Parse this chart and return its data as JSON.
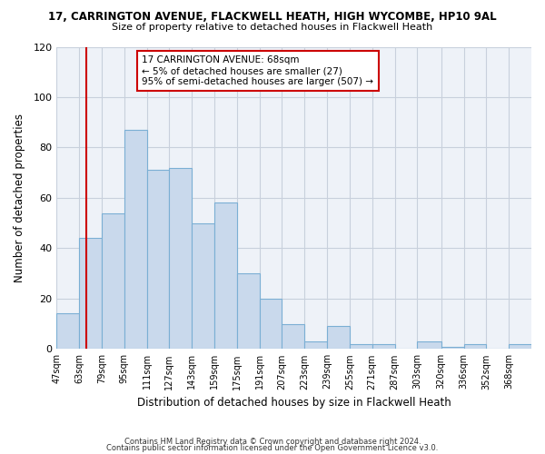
{
  "title": "17, CARRINGTON AVENUE, FLACKWELL HEATH, HIGH WYCOMBE, HP10 9AL",
  "subtitle": "Size of property relative to detached houses in Flackwell Heath",
  "xlabel": "Distribution of detached houses by size in Flackwell Heath",
  "ylabel": "Number of detached properties",
  "footer_lines": [
    "Contains HM Land Registry data © Crown copyright and database right 2024.",
    "Contains public sector information licensed under the Open Government Licence v3.0."
  ],
  "bins": [
    47,
    63,
    79,
    95,
    111,
    127,
    143,
    159,
    175,
    191,
    207,
    223,
    239,
    255,
    271,
    287,
    303,
    320,
    336,
    352,
    368,
    384
  ],
  "counts": [
    14,
    44,
    54,
    87,
    71,
    72,
    50,
    58,
    30,
    20,
    10,
    3,
    9,
    2,
    2,
    0,
    3,
    1,
    2,
    0,
    2
  ],
  "bar_facecolor": "#c9d9ec",
  "bar_edgecolor": "#7bafd4",
  "property_line_x": 68,
  "property_line_color": "#cc0000",
  "annotation_title": "17 CARRINGTON AVENUE: 68sqm",
  "annotation_line1": "← 5% of detached houses are smaller (27)",
  "annotation_line2": "95% of semi-detached houses are larger (507) →",
  "annotation_box_color": "#cc0000",
  "ylim": [
    0,
    120
  ],
  "xlim": [
    47,
    384
  ],
  "tick_labels": [
    "47sqm",
    "63sqm",
    "79sqm",
    "95sqm",
    "111sqm",
    "127sqm",
    "143sqm",
    "159sqm",
    "175sqm",
    "191sqm",
    "207sqm",
    "223sqm",
    "239sqm",
    "255sqm",
    "271sqm",
    "287sqm",
    "303sqm",
    "320sqm",
    "336sqm",
    "352sqm",
    "368sqm"
  ],
  "tick_positions": [
    47,
    63,
    79,
    95,
    111,
    127,
    143,
    159,
    175,
    191,
    207,
    223,
    239,
    255,
    271,
    287,
    303,
    320,
    336,
    352,
    368
  ],
  "background_color": "#ffffff",
  "plot_bg_color": "#eef2f8",
  "grid_color": "#c8d0dc"
}
